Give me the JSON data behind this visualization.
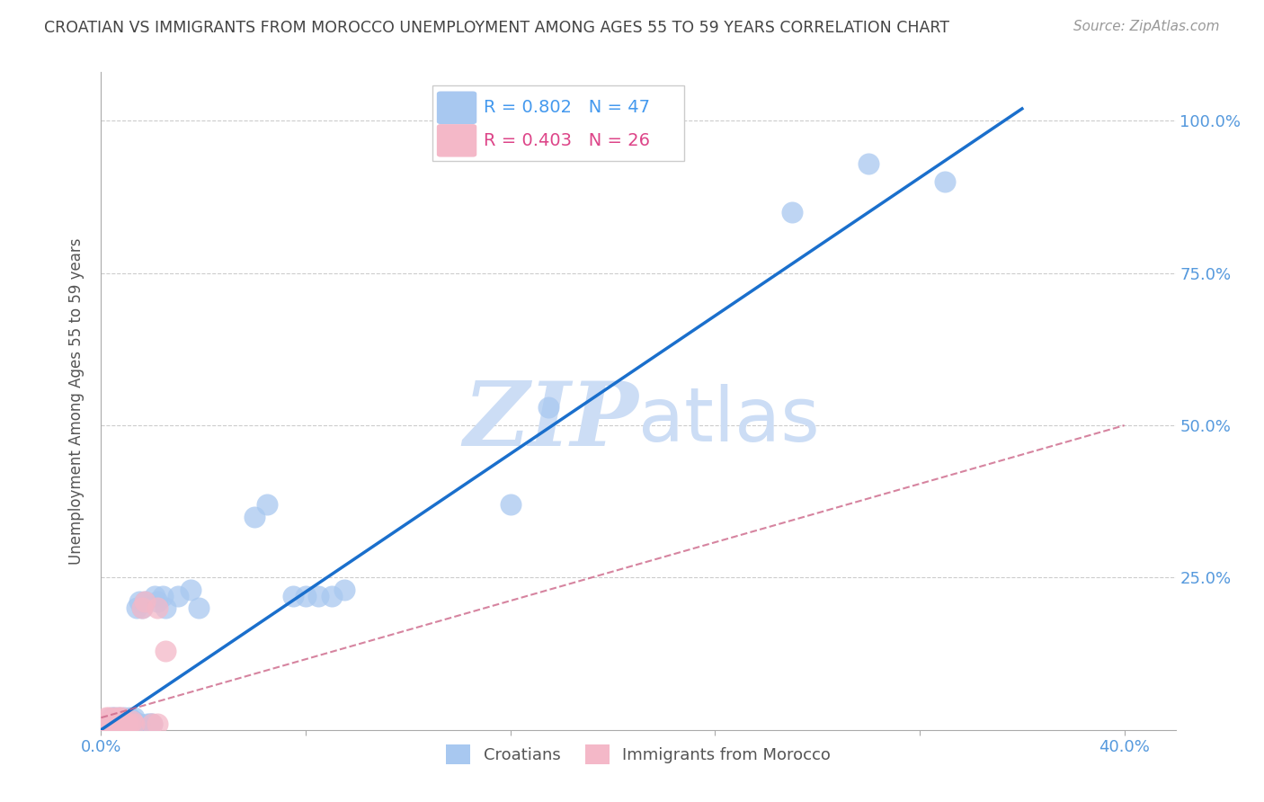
{
  "title": "CROATIAN VS IMMIGRANTS FROM MOROCCO UNEMPLOYMENT AMONG AGES 55 TO 59 YEARS CORRELATION CHART",
  "source": "Source: ZipAtlas.com",
  "ylabel": "Unemployment Among Ages 55 to 59 years",
  "xlim": [
    0.0,
    0.42
  ],
  "ylim": [
    0.0,
    1.08
  ],
  "xtick_positions": [
    0.0,
    0.08,
    0.16,
    0.24,
    0.32,
    0.4
  ],
  "xtick_labels": [
    "0.0%",
    "",
    "",
    "",
    "",
    "40.0%"
  ],
  "ytick_positions": [
    0.25,
    0.5,
    0.75,
    1.0
  ],
  "ytick_labels": [
    "25.0%",
    "50.0%",
    "75.0%",
    "100.0%"
  ],
  "croatians_R": 0.802,
  "croatians_N": 47,
  "morocco_R": 0.403,
  "morocco_N": 26,
  "blue_color": "#a8c8f0",
  "blue_line_color": "#1a6fcc",
  "pink_color": "#f4b8c8",
  "pink_line_color": "#cc6688",
  "watermark_color": "#ccddf5",
  "grid_color": "#cccccc",
  "title_color": "#444444",
  "axis_color": "#5599dd",
  "label_color": "#555555",
  "legend_blue_text": "#4499ee",
  "legend_pink_text": "#dd4488",
  "blue_scatter_x": [
    0.002,
    0.003,
    0.004,
    0.004,
    0.005,
    0.005,
    0.006,
    0.006,
    0.007,
    0.007,
    0.008,
    0.008,
    0.009,
    0.009,
    0.01,
    0.01,
    0.011,
    0.012,
    0.013,
    0.013,
    0.014,
    0.015,
    0.015,
    0.016,
    0.017,
    0.018,
    0.019,
    0.02,
    0.021,
    0.022,
    0.024,
    0.025,
    0.03,
    0.035,
    0.038,
    0.06,
    0.065,
    0.075,
    0.08,
    0.085,
    0.09,
    0.095,
    0.16,
    0.175,
    0.27,
    0.3,
    0.33
  ],
  "blue_scatter_y": [
    0.01,
    0.01,
    0.02,
    0.01,
    0.02,
    0.01,
    0.015,
    0.01,
    0.01,
    0.02,
    0.01,
    0.015,
    0.02,
    0.01,
    0.01,
    0.015,
    0.02,
    0.01,
    0.015,
    0.02,
    0.2,
    0.21,
    0.01,
    0.2,
    0.21,
    0.01,
    0.01,
    0.01,
    0.22,
    0.21,
    0.22,
    0.2,
    0.22,
    0.23,
    0.2,
    0.35,
    0.37,
    0.22,
    0.22,
    0.22,
    0.22,
    0.23,
    0.37,
    0.53,
    0.85,
    0.93,
    0.9
  ],
  "pink_scatter_x": [
    0.001,
    0.002,
    0.002,
    0.003,
    0.003,
    0.004,
    0.004,
    0.005,
    0.005,
    0.006,
    0.006,
    0.007,
    0.007,
    0.008,
    0.008,
    0.009,
    0.01,
    0.011,
    0.012,
    0.013,
    0.016,
    0.017,
    0.02,
    0.022,
    0.022,
    0.025
  ],
  "pink_scatter_y": [
    0.01,
    0.01,
    0.02,
    0.01,
    0.02,
    0.01,
    0.015,
    0.01,
    0.02,
    0.01,
    0.015,
    0.02,
    0.01,
    0.02,
    0.01,
    0.015,
    0.01,
    0.01,
    0.015,
    0.01,
    0.2,
    0.21,
    0.01,
    0.2,
    0.01,
    0.13
  ],
  "blue_line_x": [
    0.0,
    0.36
  ],
  "blue_line_y": [
    0.0,
    1.02
  ],
  "pink_line_x": [
    0.0,
    0.4
  ],
  "pink_line_y": [
    0.02,
    0.5
  ]
}
